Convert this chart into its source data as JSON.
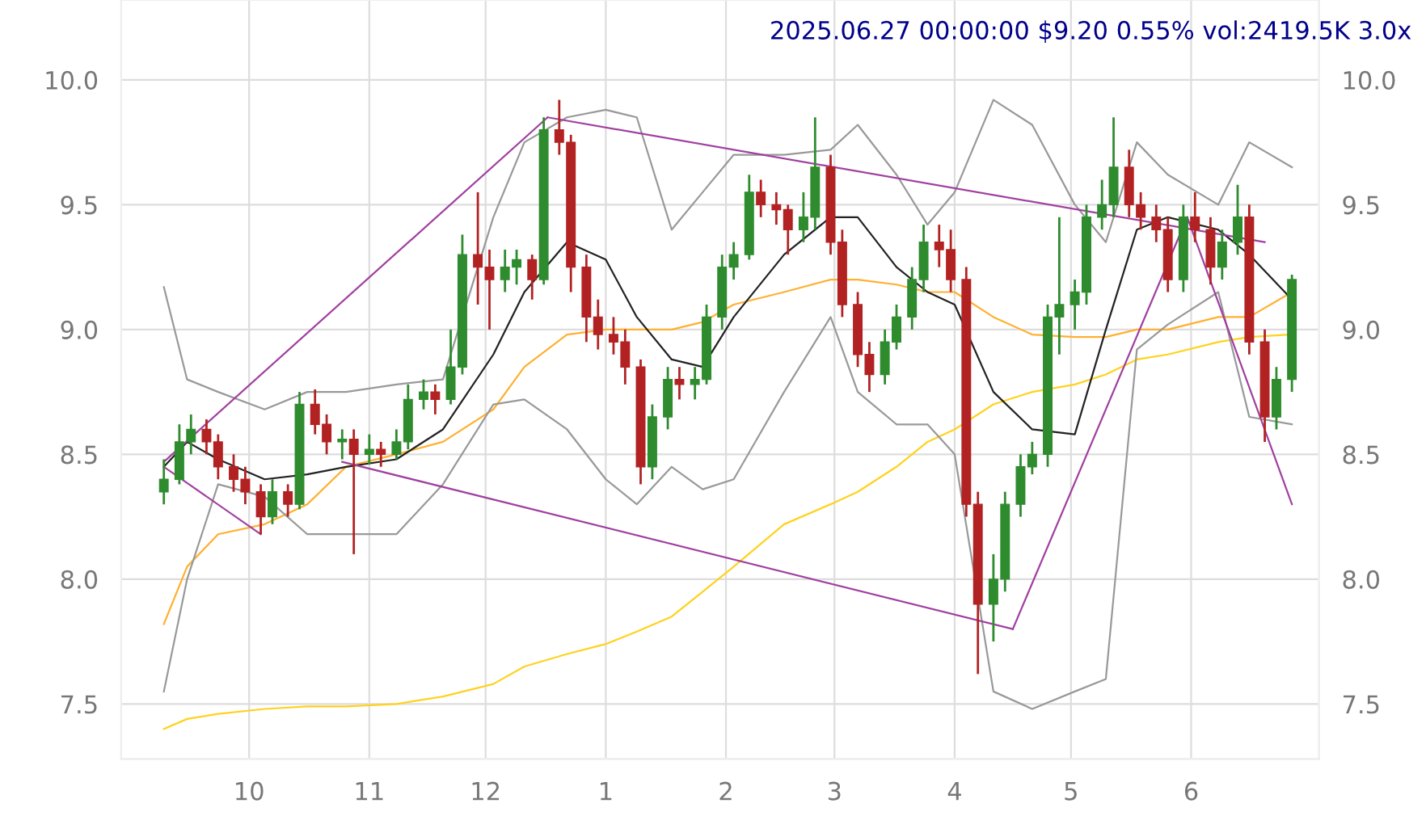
{
  "chart_data": {
    "type": "candlestick",
    "title": "2025.06.27 00:00:00 $9.20 0.55% vol:2419.5K 3.0x",
    "xlim": [
      "2024-08-29",
      "2025-07-04"
    ],
    "xticks": [
      {
        "value": "2024-10-01",
        "label": "10"
      },
      {
        "value": "2024-11-01",
        "label": "11"
      },
      {
        "value": "2024-12-01",
        "label": "12"
      },
      {
        "value": "2025-01-01",
        "label": "1"
      },
      {
        "value": "2025-02-01",
        "label": "2"
      },
      {
        "value": "2025-03-01",
        "label": "3"
      },
      {
        "value": "2025-04-01",
        "label": "4"
      },
      {
        "value": "2025-05-01",
        "label": "5"
      },
      {
        "value": "2025-06-01",
        "label": "6"
      }
    ],
    "ylim": [
      7.28,
      10.32
    ],
    "yticks": [
      7.5,
      {
        "value": 8,
        "label": "8.0"
      },
      8.5,
      {
        "value": 9,
        "label": "9.0"
      },
      9.5,
      {
        "value": 10,
        "label": "10.0"
      }
    ],
    "y2lim": [
      7.28,
      10.32
    ],
    "y2ticks": [
      7.5,
      {
        "value": 8,
        "label": "8.0"
      },
      8.5,
      {
        "value": 9,
        "label": "9.0"
      },
      9.5,
      {
        "value": 10,
        "label": "10.0"
      }
    ],
    "grid": true,
    "series": [
      {
        "type": "line",
        "color": "#ffd21f",
        "x": [
          "2024-09-09",
          "2024-09-15",
          "2024-09-23",
          "2024-10-05",
          "2024-10-16",
          "2024-10-26",
          "2024-11-08",
          "2024-11-20",
          "2024-12-03",
          "2024-12-11",
          "2024-12-22",
          "2025-01-01",
          "2025-01-09",
          "2025-01-18",
          "2025-01-26",
          "2025-02-03",
          "2025-02-16",
          "2025-02-28",
          "2025-03-07",
          "2025-03-17",
          "2025-03-25",
          "2025-04-01",
          "2025-04-11",
          "2025-04-21",
          "2025-05-02",
          "2025-05-10",
          "2025-05-18",
          "2025-05-26",
          "2025-06-08",
          "2025-06-16",
          "2025-06-27"
        ],
        "values": [
          7.4,
          7.44,
          7.46,
          7.48,
          7.49,
          7.49,
          7.5,
          7.53,
          7.58,
          7.65,
          7.7,
          7.74,
          7.79,
          7.85,
          7.95,
          8.05,
          8.22,
          8.3,
          8.35,
          8.45,
          8.55,
          8.6,
          8.7,
          8.75,
          8.78,
          8.82,
          8.88,
          8.9,
          8.95,
          8.97,
          8.98
        ]
      },
      {
        "type": "line",
        "color": "#ffb030",
        "x": [
          "2024-09-09",
          "2024-09-15",
          "2024-09-23",
          "2024-10-05",
          "2024-10-16",
          "2024-10-26",
          "2024-11-08",
          "2024-11-20",
          "2024-12-03",
          "2024-12-11",
          "2024-12-22",
          "2025-01-01",
          "2025-01-09",
          "2025-01-18",
          "2025-01-26",
          "2025-02-03",
          "2025-02-16",
          "2025-02-28",
          "2025-03-07",
          "2025-03-17",
          "2025-03-25",
          "2025-04-01",
          "2025-04-11",
          "2025-04-21",
          "2025-05-02",
          "2025-05-10",
          "2025-05-18",
          "2025-05-26",
          "2025-06-08",
          "2025-06-16",
          "2025-06-27"
        ],
        "values": [
          7.82,
          8.05,
          8.18,
          8.22,
          8.3,
          8.45,
          8.5,
          8.55,
          8.68,
          8.85,
          8.98,
          9.0,
          9.0,
          9.0,
          9.03,
          9.1,
          9.15,
          9.2,
          9.2,
          9.18,
          9.15,
          9.15,
          9.05,
          8.98,
          8.97,
          8.97,
          9.0,
          9.0,
          9.05,
          9.05,
          9.15
        ]
      },
      {
        "type": "line",
        "color": "#999999",
        "x": [
          "2024-09-09",
          "2024-09-15",
          "2024-09-23",
          "2024-10-05",
          "2024-10-16",
          "2024-10-26",
          "2024-11-08",
          "2024-11-20",
          "2024-12-03",
          "2024-12-11",
          "2024-12-22",
          "2025-01-01",
          "2025-01-09",
          "2025-01-18",
          "2025-01-26",
          "2025-02-03",
          "2025-02-16",
          "2025-02-28",
          "2025-03-07",
          "2025-03-17",
          "2025-03-25",
          "2025-04-01",
          "2025-04-11",
          "2025-04-21",
          "2025-05-02",
          "2025-05-10",
          "2025-05-18",
          "2025-05-26",
          "2025-06-08",
          "2025-06-16",
          "2025-06-27"
        ],
        "values": [
          9.17,
          8.8,
          8.75,
          8.68,
          8.75,
          8.75,
          8.78,
          8.8,
          9.45,
          9.75,
          9.85,
          9.88,
          9.85,
          9.4,
          9.55,
          9.7,
          9.7,
          9.72,
          9.82,
          9.62,
          9.42,
          9.55,
          9.92,
          9.82,
          9.5,
          9.35,
          9.75,
          9.62,
          9.5,
          9.75,
          9.65
        ]
      },
      {
        "type": "line",
        "color": "#999999",
        "x": [
          "2024-09-09",
          "2024-09-15",
          "2024-09-23",
          "2024-10-05",
          "2024-10-16",
          "2024-10-26",
          "2024-11-08",
          "2024-11-20",
          "2024-12-03",
          "2024-12-11",
          "2024-12-22",
          "2025-01-01",
          "2025-01-09",
          "2025-01-18",
          "2025-01-26",
          "2025-02-03",
          "2025-02-16",
          "2025-02-28",
          "2025-03-07",
          "2025-03-17",
          "2025-03-25",
          "2025-04-01",
          "2025-04-11",
          "2025-04-21",
          "2025-05-02",
          "2025-05-10",
          "2025-05-18",
          "2025-05-26",
          "2025-06-08",
          "2025-06-16",
          "2025-06-27"
        ],
        "values": [
          7.55,
          8.0,
          8.38,
          8.33,
          8.18,
          8.18,
          8.18,
          8.38,
          8.7,
          8.72,
          8.6,
          8.4,
          8.3,
          8.45,
          8.36,
          8.4,
          8.75,
          9.05,
          8.75,
          8.62,
          8.62,
          8.5,
          7.55,
          7.48,
          7.55,
          7.6,
          8.92,
          9.02,
          9.15,
          8.65,
          8.62
        ]
      },
      {
        "type": "line",
        "color": "#222222",
        "x": [
          "2024-09-09",
          "2024-09-15",
          "2024-09-23",
          "2024-10-05",
          "2024-10-16",
          "2024-10-26",
          "2024-11-08",
          "2024-11-20",
          "2024-12-03",
          "2024-12-11",
          "2024-12-22",
          "2025-01-01",
          "2025-01-09",
          "2025-01-18",
          "2025-01-26",
          "2025-02-03",
          "2025-02-16",
          "2025-02-28",
          "2025-03-07",
          "2025-03-17",
          "2025-03-25",
          "2025-04-01",
          "2025-04-11",
          "2025-04-21",
          "2025-05-02",
          "2025-05-10",
          "2025-05-18",
          "2025-05-26",
          "2025-06-08",
          "2025-06-16",
          "2025-06-27"
        ],
        "values": [
          8.45,
          8.55,
          8.48,
          8.4,
          8.42,
          8.45,
          8.48,
          8.6,
          8.9,
          9.15,
          9.35,
          9.28,
          9.05,
          8.88,
          8.85,
          9.05,
          9.3,
          9.45,
          9.45,
          9.25,
          9.15,
          9.1,
          8.75,
          8.6,
          8.58,
          9.0,
          9.4,
          9.45,
          9.4,
          9.3,
          9.12
        ]
      },
      {
        "type": "line",
        "color": "#a040a0",
        "x": [
          "2024-09-09",
          "2024-12-17"
        ],
        "values": [
          8.47,
          9.85
        ]
      },
      {
        "type": "line",
        "color": "#a040a0",
        "x": [
          "2024-12-17",
          "2025-06-20"
        ],
        "values": [
          9.85,
          9.35
        ]
      },
      {
        "type": "line",
        "color": "#a040a0",
        "x": [
          "2024-09-09",
          "2024-10-04"
        ],
        "values": [
          8.45,
          8.18
        ]
      },
      {
        "type": "line",
        "color": "#a040a0",
        "x": [
          "2024-10-25",
          "2025-04-16"
        ],
        "values": [
          8.47,
          7.8
        ]
      },
      {
        "type": "line",
        "color": "#a040a0",
        "x": [
          "2025-04-16",
          "2025-05-31"
        ],
        "values": [
          7.8,
          9.45
        ]
      },
      {
        "type": "line",
        "color": "#a040a0",
        "x": [
          "2025-05-31",
          "2025-06-27"
        ],
        "values": [
          9.45,
          8.3
        ]
      },
      {
        "x": [
          "2024-09-09",
          "2024-09-13",
          "2024-09-16",
          "2024-09-20",
          "2024-09-23",
          "2024-09-27",
          "2024-09-30",
          "2024-10-04",
          "2024-10-07",
          "2024-10-11",
          "2024-10-14",
          "2024-10-18",
          "2024-10-21",
          "2024-10-25",
          "2024-10-28",
          "2024-11-01",
          "2024-11-04",
          "2024-11-08",
          "2024-11-11",
          "2024-11-15",
          "2024-11-18",
          "2024-11-22",
          "2024-11-25",
          "2024-11-29",
          "2024-12-02",
          "2024-12-06",
          "2024-12-09",
          "2024-12-13",
          "2024-12-16",
          "2024-12-20",
          "2024-12-23",
          "2024-12-27",
          "2024-12-30",
          "2025-01-03",
          "2025-01-06",
          "2025-01-10",
          "2025-01-13",
          "2025-01-17",
          "2025-01-20",
          "2025-01-24",
          "2025-01-27",
          "2025-01-31",
          "2025-02-03",
          "2025-02-07",
          "2025-02-10",
          "2025-02-14",
          "2025-02-17",
          "2025-02-21",
          "2025-02-24",
          "2025-02-28",
          "2025-03-03",
          "2025-03-07",
          "2025-03-10",
          "2025-03-14",
          "2025-03-17",
          "2025-03-21",
          "2025-03-24",
          "2025-03-28",
          "2025-03-31",
          "2025-04-04",
          "2025-04-07",
          "2025-04-11",
          "2025-04-14",
          "2025-04-18",
          "2025-04-21",
          "2025-04-25",
          "2025-04-28",
          "2025-05-02",
          "2025-05-05",
          "2025-05-09",
          "2025-05-12",
          "2025-05-16",
          "2025-05-19",
          "2025-05-23",
          "2025-05-26",
          "2025-05-30",
          "2025-06-02",
          "2025-06-06",
          "2025-06-09",
          "2025-06-13",
          "2025-06-16",
          "2025-06-20",
          "2025-06-23",
          "2025-06-27"
        ],
        "ohlc": [
          [
            8.35,
            8.48,
            8.3,
            8.4
          ],
          [
            8.4,
            8.62,
            8.38,
            8.55
          ],
          [
            8.55,
            8.66,
            8.5,
            8.6
          ],
          [
            8.6,
            8.64,
            8.5,
            8.55
          ],
          [
            8.55,
            8.58,
            8.4,
            8.45
          ],
          [
            8.45,
            8.5,
            8.35,
            8.4
          ],
          [
            8.4,
            8.45,
            8.3,
            8.35
          ],
          [
            8.35,
            8.38,
            8.18,
            8.25
          ],
          [
            8.25,
            8.4,
            8.22,
            8.35
          ],
          [
            8.35,
            8.38,
            8.25,
            8.3
          ],
          [
            8.3,
            8.75,
            8.28,
            8.7
          ],
          [
            8.7,
            8.76,
            8.58,
            8.62
          ],
          [
            8.62,
            8.66,
            8.5,
            8.55
          ],
          [
            8.55,
            8.6,
            8.48,
            8.56
          ],
          [
            8.56,
            8.6,
            8.1,
            8.5
          ],
          [
            8.5,
            8.58,
            8.46,
            8.52
          ],
          [
            8.52,
            8.55,
            8.45,
            8.5
          ],
          [
            8.5,
            8.6,
            8.48,
            8.55
          ],
          [
            8.55,
            8.78,
            8.52,
            8.72
          ],
          [
            8.72,
            8.8,
            8.68,
            8.75
          ],
          [
            8.75,
            8.78,
            8.66,
            8.72
          ],
          [
            8.72,
            9.0,
            8.7,
            8.85
          ],
          [
            8.85,
            9.38,
            8.82,
            9.3
          ],
          [
            9.3,
            9.55,
            9.1,
            9.25
          ],
          [
            9.25,
            9.32,
            9.0,
            9.2
          ],
          [
            9.2,
            9.32,
            9.15,
            9.25
          ],
          [
            9.25,
            9.32,
            9.18,
            9.28
          ],
          [
            9.28,
            9.3,
            9.12,
            9.2
          ],
          [
            9.2,
            9.85,
            9.18,
            9.8
          ],
          [
            9.8,
            9.92,
            9.7,
            9.75
          ],
          [
            9.75,
            9.78,
            9.15,
            9.25
          ],
          [
            9.25,
            9.3,
            8.95,
            9.05
          ],
          [
            9.05,
            9.12,
            8.92,
            8.98
          ],
          [
            8.98,
            9.05,
            8.9,
            8.95
          ],
          [
            8.95,
            9.0,
            8.78,
            8.85
          ],
          [
            8.85,
            8.88,
            8.38,
            8.45
          ],
          [
            8.45,
            8.7,
            8.4,
            8.65
          ],
          [
            8.65,
            8.85,
            8.6,
            8.8
          ],
          [
            8.8,
            8.85,
            8.72,
            8.78
          ],
          [
            8.78,
            8.85,
            8.72,
            8.8
          ],
          [
            8.8,
            9.1,
            8.78,
            9.05
          ],
          [
            9.05,
            9.3,
            9.0,
            9.25
          ],
          [
            9.25,
            9.35,
            9.2,
            9.3
          ],
          [
            9.3,
            9.62,
            9.28,
            9.55
          ],
          [
            9.55,
            9.6,
            9.45,
            9.5
          ],
          [
            9.5,
            9.55,
            9.42,
            9.48
          ],
          [
            9.48,
            9.5,
            9.3,
            9.4
          ],
          [
            9.4,
            9.55,
            9.35,
            9.45
          ],
          [
            9.45,
            9.85,
            9.4,
            9.65
          ],
          [
            9.65,
            9.7,
            9.3,
            9.35
          ],
          [
            9.35,
            9.4,
            9.05,
            9.1
          ],
          [
            9.1,
            9.15,
            8.85,
            8.9
          ],
          [
            8.9,
            8.95,
            8.75,
            8.82
          ],
          [
            8.82,
            9.0,
            8.78,
            8.95
          ],
          [
            8.95,
            9.1,
            8.92,
            9.05
          ],
          [
            9.05,
            9.25,
            9.0,
            9.2
          ],
          [
            9.2,
            9.42,
            9.15,
            9.35
          ],
          [
            9.35,
            9.42,
            9.25,
            9.32
          ],
          [
            9.32,
            9.4,
            9.15,
            9.2
          ],
          [
            9.2,
            9.25,
            8.25,
            8.3
          ],
          [
            8.3,
            8.35,
            7.62,
            7.9
          ],
          [
            7.9,
            8.1,
            7.75,
            8.0
          ],
          [
            8.0,
            8.35,
            7.95,
            8.3
          ],
          [
            8.3,
            8.5,
            8.25,
            8.45
          ],
          [
            8.45,
            8.55,
            8.42,
            8.5
          ],
          [
            8.5,
            9.1,
            8.45,
            9.05
          ],
          [
            9.05,
            9.45,
            8.9,
            9.1
          ],
          [
            9.1,
            9.2,
            9.0,
            9.15
          ],
          [
            9.15,
            9.5,
            9.1,
            9.45
          ],
          [
            9.45,
            9.6,
            9.4,
            9.5
          ],
          [
            9.5,
            9.85,
            9.45,
            9.65
          ],
          [
            9.65,
            9.72,
            9.45,
            9.5
          ],
          [
            9.5,
            9.55,
            9.4,
            9.45
          ],
          [
            9.45,
            9.5,
            9.35,
            9.4
          ],
          [
            9.4,
            9.45,
            9.15,
            9.2
          ],
          [
            9.2,
            9.5,
            9.15,
            9.45
          ],
          [
            9.45,
            9.55,
            9.35,
            9.4
          ],
          [
            9.4,
            9.45,
            9.18,
            9.25
          ],
          [
            9.25,
            9.4,
            9.2,
            9.35
          ],
          [
            9.35,
            9.58,
            9.3,
            9.45
          ],
          [
            9.45,
            9.5,
            8.9,
            8.95
          ],
          [
            8.95,
            9.0,
            8.55,
            8.65
          ],
          [
            8.65,
            8.85,
            8.6,
            8.8
          ],
          [
            8.8,
            9.22,
            8.75,
            9.2
          ]
        ],
        "colors": [
          "#2e8b2e",
          "#2e8b2e",
          "#2e8b2e",
          "#b22222",
          "#b22222",
          "#b22222",
          "#b22222",
          "#b22222",
          "#2e8b2e",
          "#b22222",
          "#2e8b2e",
          "#b22222",
          "#b22222",
          "#2e8b2e",
          "#b22222",
          "#2e8b2e",
          "#b22222",
          "#2e8b2e",
          "#2e8b2e",
          "#2e8b2e",
          "#b22222",
          "#2e8b2e",
          "#2e8b2e",
          "#b22222",
          "#b22222",
          "#2e8b2e",
          "#2e8b2e",
          "#b22222",
          "#2e8b2e",
          "#b22222",
          "#b22222",
          "#b22222",
          "#b22222",
          "#b22222",
          "#b22222",
          "#b22222",
          "#2e8b2e",
          "#2e8b2e",
          "#b22222",
          "#2e8b2e",
          "#2e8b2e",
          "#2e8b2e",
          "#2e8b2e",
          "#2e8b2e",
          "#b22222",
          "#b22222",
          "#b22222",
          "#2e8b2e",
          "#2e8b2e",
          "#b22222",
          "#b22222",
          "#b22222",
          "#b22222",
          "#2e8b2e",
          "#2e8b2e",
          "#2e8b2e",
          "#2e8b2e",
          "#b22222",
          "#b22222",
          "#b22222",
          "#b22222",
          "#2e8b2e",
          "#2e8b2e",
          "#2e8b2e",
          "#2e8b2e",
          "#2e8b2e",
          "#2e8b2e",
          "#2e8b2e",
          "#2e8b2e",
          "#2e8b2e",
          "#2e8b2e",
          "#b22222",
          "#b22222",
          "#b22222",
          "#b22222",
          "#2e8b2e",
          "#b22222",
          "#b22222",
          "#2e8b2e",
          "#2e8b2e",
          "#b22222",
          "#b22222",
          "#2e8b2e",
          "#2e8b2e"
        ]
      }
    ]
  }
}
